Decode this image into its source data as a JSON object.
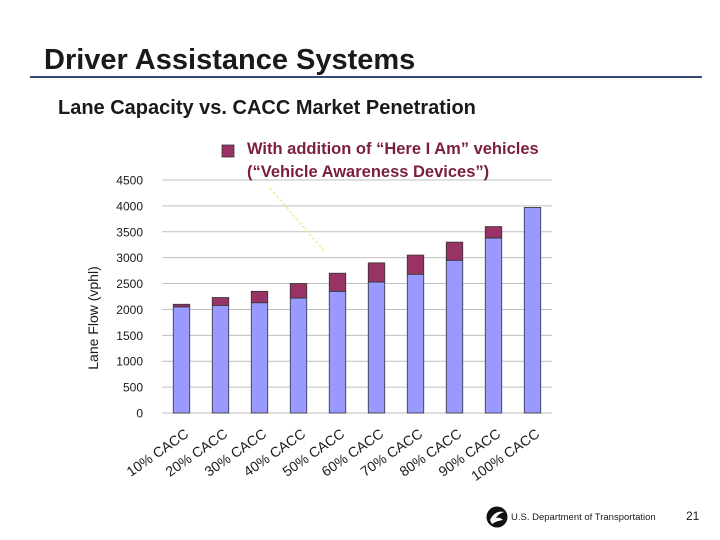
{
  "slide": {
    "title": "Driver Assistance Systems",
    "subtitle": "Lane Capacity vs. CACC Market Penetration",
    "footer_text": "U.S. Department of Transportation",
    "page_number": "21"
  },
  "chart_data": {
    "type": "bar",
    "stacked": true,
    "ylabel": "Lane Flow (vphl)",
    "xlabel": "",
    "ylim": [
      0,
      4500
    ],
    "yticks": [
      0,
      500,
      1000,
      1500,
      2000,
      2500,
      3000,
      3500,
      4000,
      4500
    ],
    "grid": true,
    "categories": [
      "10% CACC",
      "20% CACC",
      "30% CACC",
      "40% CACC",
      "50% CACC",
      "60% CACC",
      "70% CACC",
      "80% CACC",
      "90% CACC",
      "100% CACC"
    ],
    "series": [
      {
        "values": [
          2050,
          2080,
          2130,
          2220,
          2350,
          2530,
          2680,
          2950,
          3380,
          3970
        ],
        "color": "#9999ff"
      },
      {
        "values": [
          50,
          150,
          220,
          280,
          350,
          370,
          370,
          350,
          220,
          0
        ],
        "color": "#993366"
      }
    ],
    "legend": {
      "lines": [
        "With addition of “Here I Am” vehicles",
        "(“Vehicle Awareness Devices”)"
      ],
      "placement": "top",
      "swatch_color": "#993366"
    }
  }
}
